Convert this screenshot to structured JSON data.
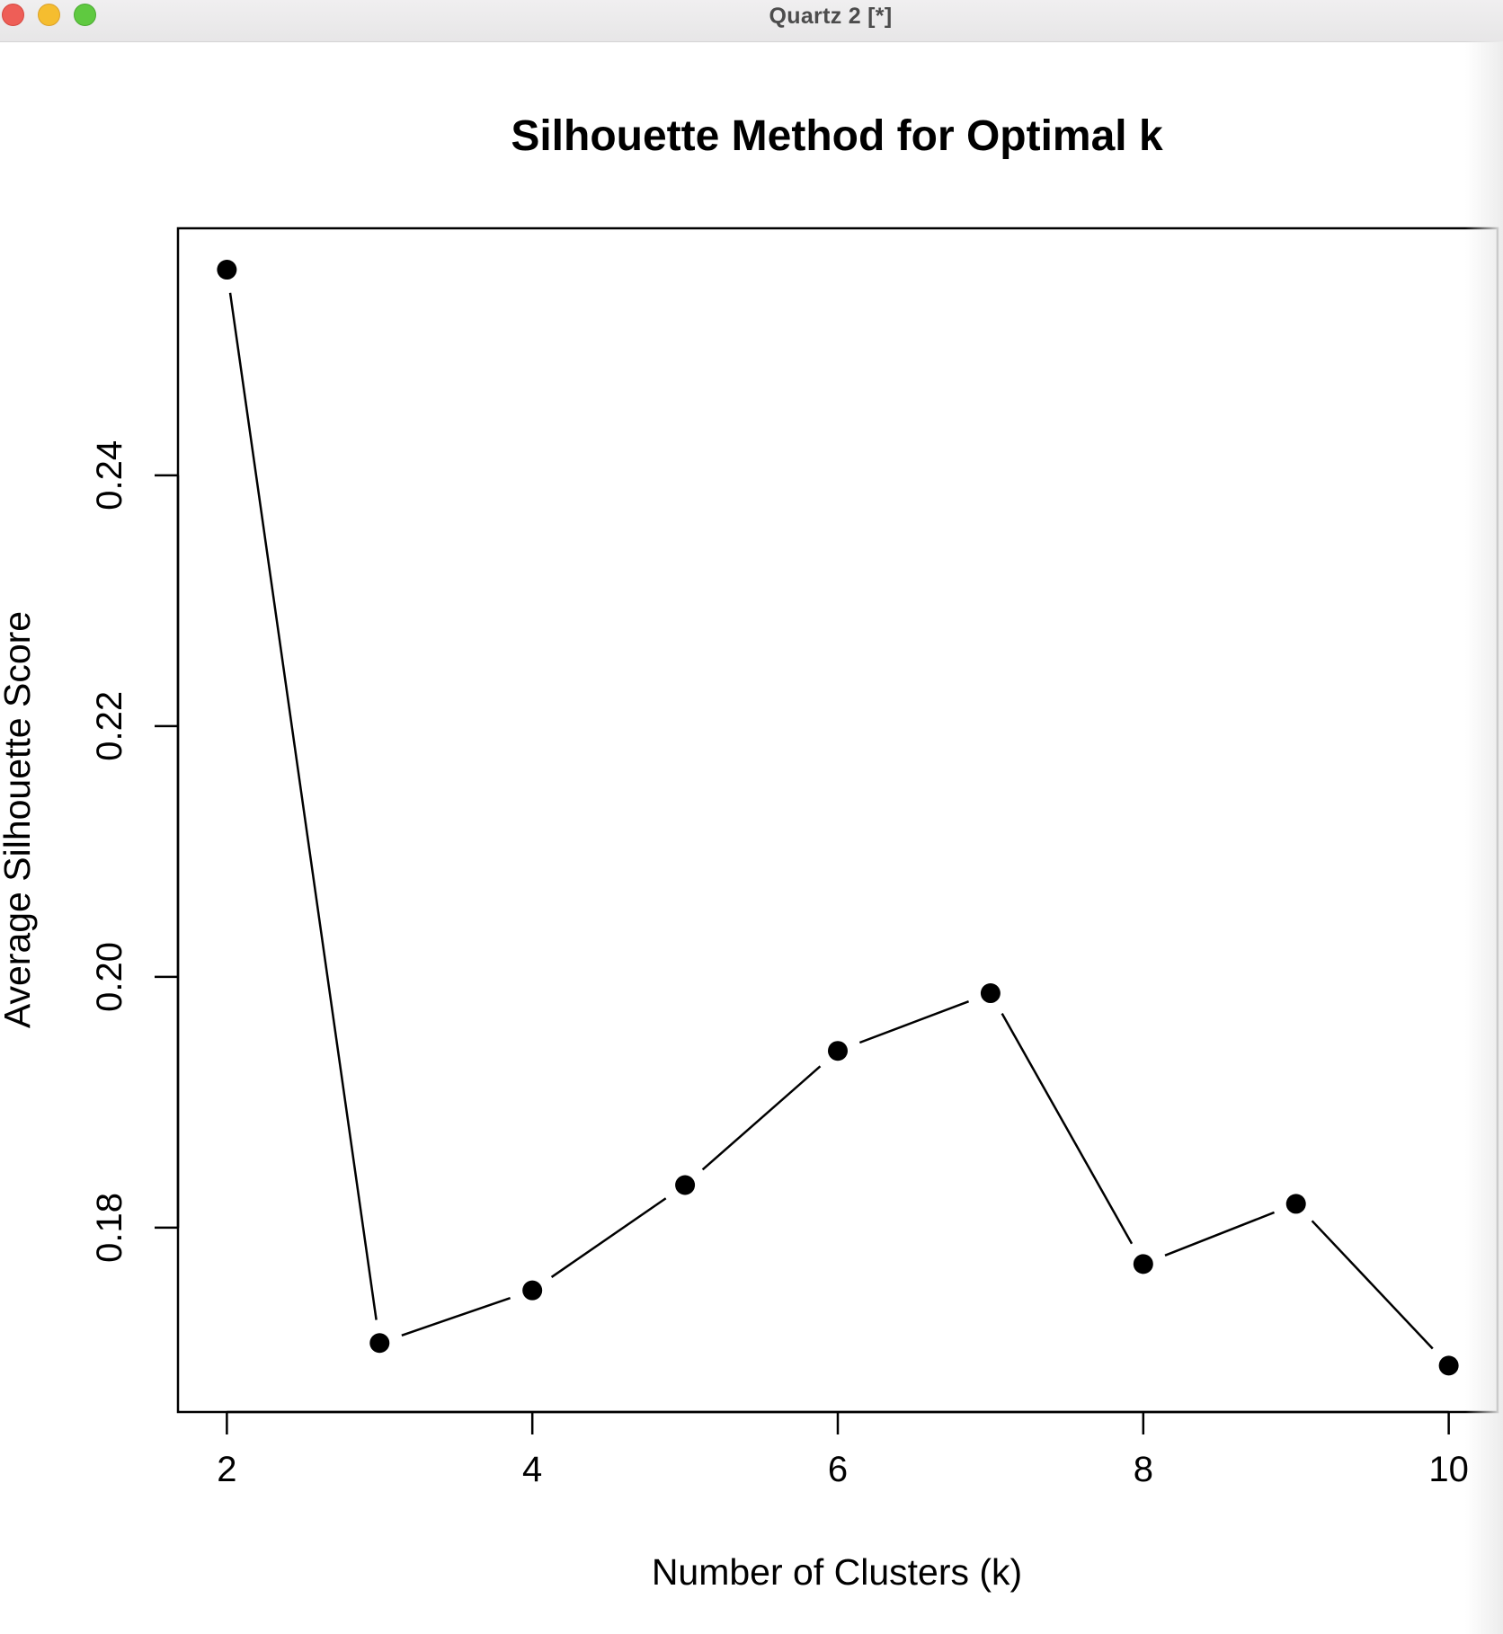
{
  "window": {
    "title": "Quartz 2 [*]",
    "buttons": [
      "close",
      "minimize",
      "zoom"
    ]
  },
  "chart_data": {
    "type": "line",
    "title": "Silhouette Method for Optimal k",
    "xlabel": "Number of Clusters (k)",
    "ylabel": "Average Silhouette Score",
    "x": [
      2,
      3,
      4,
      5,
      6,
      7,
      8,
      9,
      10
    ],
    "series": [
      {
        "values": [
          0.2564,
          0.1708,
          0.175,
          0.1834,
          0.1941,
          0.1987,
          0.1771,
          0.1819,
          0.169
        ]
      }
    ],
    "xlim": [
      1.68,
      10.32
    ],
    "ylim": [
      0.1653,
      0.2597
    ],
    "xticks": [
      2,
      4,
      6,
      8,
      10
    ],
    "xtick_labels": [
      "2",
      "4",
      "6",
      "8",
      "10"
    ],
    "yticks": [
      0.18,
      0.2,
      0.22,
      0.24
    ],
    "ytick_labels": [
      "0.18",
      "0.20",
      "0.22",
      "0.24"
    ],
    "marker": "filled-circle",
    "line_color": "#000000",
    "grid": false,
    "legend": "none"
  }
}
